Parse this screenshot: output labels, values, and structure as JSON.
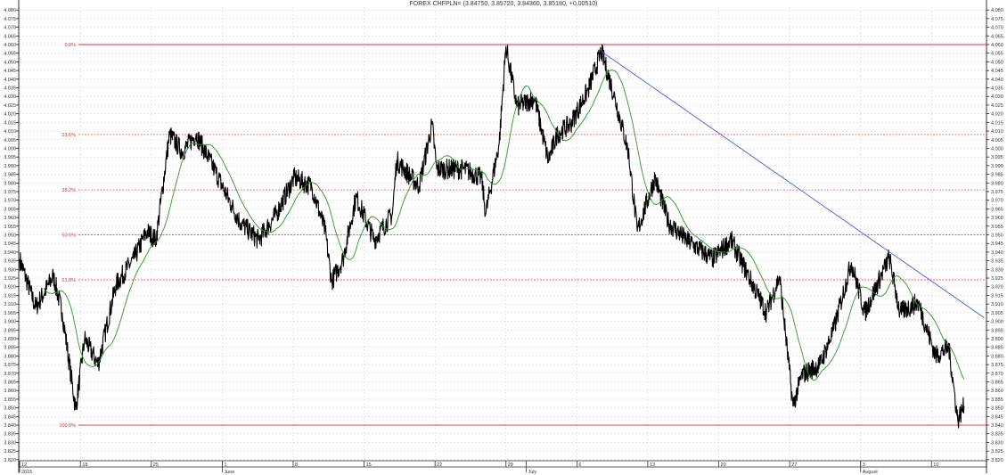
{
  "chart_data": {
    "type": "line",
    "title": "FOREX CHFPLN= (3.84750, 3.85720, 3.84360, 3.85180, +0.00510)",
    "xlabel": "",
    "ylabel": "",
    "ylim": [
      3.82,
      4.08
    ],
    "xlim": [
      "2015-05-12 00:00",
      "2015-08-15 05:00"
    ],
    "grid": true,
    "y_ticks": [
      "3.820",
      "3.825",
      "3.830",
      "3.835",
      "3.840",
      "3.845",
      "3.850",
      "3.855",
      "3.860",
      "3.865",
      "3.870",
      "3.875",
      "3.880",
      "3.885",
      "3.890",
      "3.895",
      "3.900",
      "3.905",
      "3.910",
      "3.915",
      "3.920",
      "3.925",
      "3.930",
      "3.935",
      "3.940",
      "3.945",
      "3.950",
      "3.955",
      "3.960",
      "3.965",
      "3.970",
      "3.975",
      "3.980",
      "3.985",
      "3.990",
      "3.995",
      "4.000",
      "4.005",
      "4.010",
      "4.015",
      "4.020",
      "4.025",
      "4.030",
      "4.035",
      "4.040",
      "4.045",
      "4.050",
      "4.055",
      "4.060",
      "4.065",
      "4.070",
      "4.075",
      "4.080"
    ],
    "x_ticks": [
      {
        "date": "2015-05-12",
        "label": "12",
        "sublabel": "2015"
      },
      {
        "date": "2015-05-18",
        "label": "18",
        "sublabel": ""
      },
      {
        "date": "2015-05-25",
        "label": "25",
        "sublabel": ""
      },
      {
        "date": "2015-06-01",
        "label": "1",
        "sublabel": "June"
      },
      {
        "date": "2015-06-08",
        "label": "8",
        "sublabel": ""
      },
      {
        "date": "2015-06-15",
        "label": "15",
        "sublabel": ""
      },
      {
        "date": "2015-06-22",
        "label": "22",
        "sublabel": ""
      },
      {
        "date": "2015-06-29",
        "label": "29",
        "sublabel": ""
      },
      {
        "date": "2015-07-01",
        "label": "",
        "sublabel": "July"
      },
      {
        "date": "2015-07-06",
        "label": "6",
        "sublabel": ""
      },
      {
        "date": "2015-07-13",
        "label": "13",
        "sublabel": ""
      },
      {
        "date": "2015-07-20",
        "label": "20",
        "sublabel": ""
      },
      {
        "date": "2015-07-27",
        "label": "27",
        "sublabel": ""
      },
      {
        "date": "2015-08-03",
        "label": "3",
        "sublabel": "August"
      },
      {
        "date": "2015-08-10",
        "label": "10",
        "sublabel": ""
      }
    ],
    "series": [
      {
        "kind": "price",
        "color": "#000000",
        "points": [
          [
            "2015-05-12 00:00",
            3.936
          ],
          [
            "2015-05-13 14:00",
            3.908
          ],
          [
            "2015-05-15 08:00",
            3.926
          ],
          [
            "2015-05-16 05:00",
            3.905
          ],
          [
            "2015-05-17 13:00",
            3.849
          ],
          [
            "2015-05-18 10:00",
            3.89
          ],
          [
            "2015-05-19 18:00",
            3.875
          ],
          [
            "2015-05-21 12:00",
            3.921
          ],
          [
            "2015-05-23 06:00",
            3.936
          ],
          [
            "2015-05-24 14:00",
            3.952
          ],
          [
            "2015-05-25 11:00",
            3.947
          ],
          [
            "2015-05-26 19:00",
            4.008
          ],
          [
            "2015-05-28 02:00",
            3.998
          ],
          [
            "2015-05-29 10:00",
            4.008
          ],
          [
            "2015-05-31 05:00",
            3.988
          ],
          [
            "2015-06-01 22:00",
            3.967
          ],
          [
            "2015-06-02 19:00",
            3.957
          ],
          [
            "2015-06-04 14:00",
            3.947
          ],
          [
            "2015-06-06 08:00",
            3.962
          ],
          [
            "2015-06-08 02:00",
            3.983
          ],
          [
            "2015-06-09 20:00",
            3.978
          ],
          [
            "2015-06-11 04:00",
            3.952
          ],
          [
            "2015-06-11 19:00",
            3.923
          ],
          [
            "2015-06-12 22:00",
            3.936
          ],
          [
            "2015-06-14 05:00",
            3.972
          ],
          [
            "2015-06-16 00:00",
            3.947
          ],
          [
            "2015-06-17 19:00",
            3.962
          ],
          [
            "2015-06-18 05:00",
            3.993
          ],
          [
            "2015-06-20 10:00",
            3.978
          ],
          [
            "2015-06-21 17:00",
            4.014
          ],
          [
            "2015-06-22 04:00",
            3.988
          ],
          [
            "2015-06-24 20:00",
            3.988
          ],
          [
            "2015-06-26 14:00",
            3.983
          ],
          [
            "2015-06-27 00:00",
            3.962
          ],
          [
            "2015-06-28 08:00",
            4.003
          ],
          [
            "2015-06-29 00:00",
            4.059
          ],
          [
            "2015-06-30 02:00",
            4.024
          ],
          [
            "2015-07-01 20:00",
            4.029
          ],
          [
            "2015-07-03 04:00",
            3.993
          ],
          [
            "2015-07-04 01:00",
            4.008
          ],
          [
            "2015-07-05 09:00",
            4.014
          ],
          [
            "2015-07-07 03:00",
            4.034
          ],
          [
            "2015-07-08 10:00",
            4.056
          ],
          [
            "2015-07-09 18:00",
            4.029
          ],
          [
            "2015-07-11 02:00",
            3.998
          ],
          [
            "2015-07-11 23:00",
            3.952
          ],
          [
            "2015-07-13 17:00",
            3.983
          ],
          [
            "2015-07-15 01:00",
            3.957
          ],
          [
            "2015-07-16 19:00",
            3.947
          ],
          [
            "2015-07-19 10:00",
            3.936
          ],
          [
            "2015-07-21 05:00",
            3.947
          ],
          [
            "2015-07-22 23:00",
            3.926
          ],
          [
            "2015-07-24 17:00",
            3.905
          ],
          [
            "2015-07-26 00:00",
            3.926
          ],
          [
            "2015-07-27 08:00",
            3.851
          ],
          [
            "2015-07-28 05:00",
            3.869
          ],
          [
            "2015-07-30 00:00",
            3.875
          ],
          [
            "2015-07-31 08:00",
            3.895
          ],
          [
            "2015-08-02 02:00",
            3.934
          ],
          [
            "2015-08-03 10:00",
            3.905
          ],
          [
            "2015-08-05 20:00",
            3.937
          ],
          [
            "2015-08-06 21:00",
            3.905
          ],
          [
            "2015-08-08 16:00",
            3.911
          ],
          [
            "2015-08-10 10:00",
            3.88
          ],
          [
            "2015-08-11 17:00",
            3.885
          ],
          [
            "2015-08-12 14:00",
            3.843
          ],
          [
            "2015-08-13 05:00",
            3.851
          ]
        ]
      },
      {
        "kind": "moving-average",
        "color": "#3a8a3a"
      }
    ],
    "fibonacci": {
      "color": "#e03030",
      "levels": [
        {
          "label": "0.0%",
          "value": 4.06,
          "style": "solid"
        },
        {
          "label": "23.6%",
          "value": 4.008,
          "style": "dashed"
        },
        {
          "label": "38.2%",
          "value": 3.976,
          "style": "dashed"
        },
        {
          "label": "50.0%",
          "value": 3.95,
          "style": "dashed"
        },
        {
          "label": "61.8%",
          "value": 3.924,
          "style": "dashed"
        },
        {
          "label": "100.0%",
          "value": 3.84,
          "style": "solid"
        }
      ]
    },
    "trendline": {
      "color": "#4a5ae8",
      "from": [
        "2015-07-08 10:00",
        4.056
      ],
      "to": [
        "2015-08-15 05:00",
        3.902
      ]
    }
  }
}
